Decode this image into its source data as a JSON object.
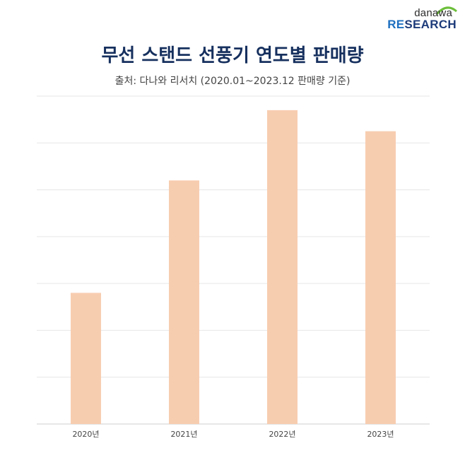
{
  "logo": {
    "top": "danawa",
    "bottom_accent": "RE",
    "bottom_rest": "SEARCH"
  },
  "colors": {
    "bar": "#f7cdb0",
    "title": "#16305e",
    "grid": "#e6e6e6",
    "axis": "#cfcfcf"
  },
  "chart_data": {
    "type": "bar",
    "title": "무선 스탠드 선풍기 연도별 판매량",
    "subtitle": "출처: 다나와 리서치 (2020.01~2023.12 판매량 기준)",
    "categories": [
      "2020년",
      "2021년",
      "2022년",
      "2023년"
    ],
    "values": [
      28,
      52,
      67,
      62.5
    ],
    "ylim": [
      0,
      70
    ],
    "gridlines": [
      10,
      20,
      30,
      40,
      50,
      60,
      70
    ],
    "xlabel": "",
    "ylabel": "",
    "show_y_ticks": false
  }
}
